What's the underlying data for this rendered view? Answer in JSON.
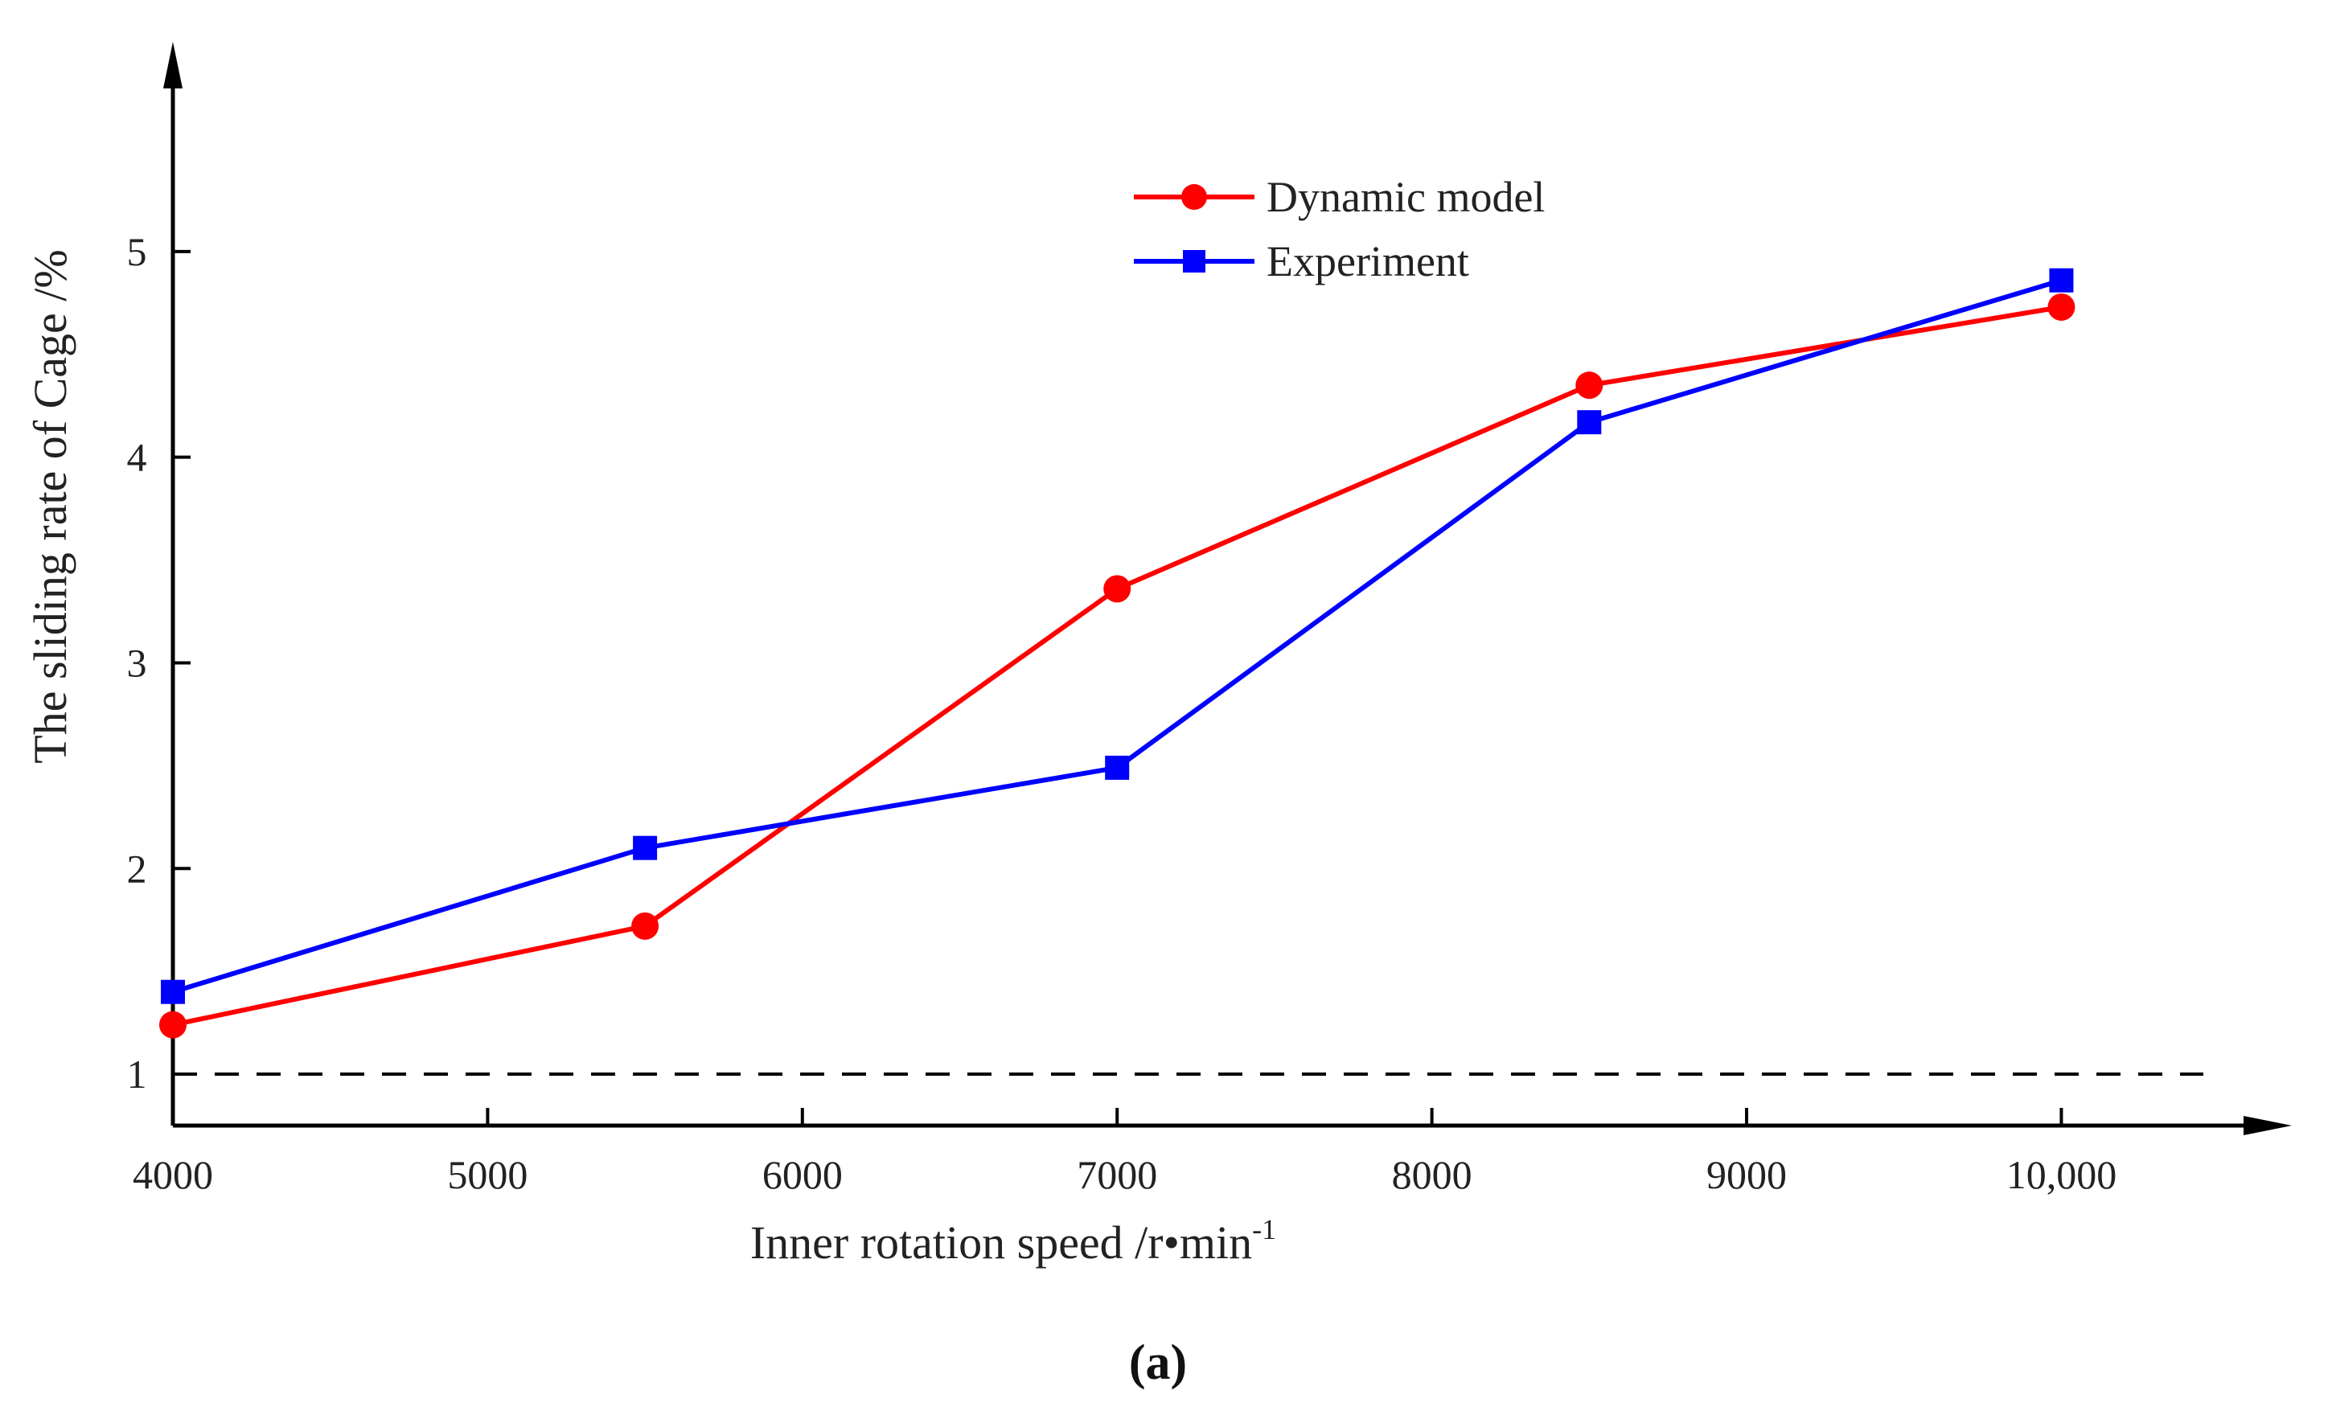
{
  "chart_data": {
    "type": "line",
    "x": [
      4000,
      5500,
      7000,
      8500,
      10000
    ],
    "series": [
      {
        "name": "Dynamic model",
        "values": [
          1.24,
          1.72,
          3.36,
          4.35,
          4.73
        ],
        "color": "#ff0000",
        "marker": "circle"
      },
      {
        "name": "Experiment",
        "values": [
          1.4,
          2.1,
          2.49,
          4.17,
          4.86
        ],
        "color": "#0000ff",
        "marker": "square"
      }
    ],
    "xlabel": "Inner rotation speed /r•min",
    "xlabel_superscript": "-1",
    "ylabel": "The sliding rate of Cage /%",
    "xlim": [
      4000,
      10400
    ],
    "ylim": [
      0.75,
      5.5
    ],
    "xticks": [
      4000,
      5000,
      6000,
      7000,
      8000,
      9000,
      10000
    ],
    "xtick_labels": [
      "4000",
      "5000",
      "6000",
      "7000",
      "8000",
      "9000",
      "10,000"
    ],
    "yticks": [
      1,
      2,
      3,
      4,
      5
    ],
    "ytick_labels": [
      "1",
      "2",
      "3",
      "4",
      "5"
    ],
    "reference_line": {
      "y": 1,
      "style": "dashed",
      "color": "#000000"
    },
    "legend_position": "top-right",
    "grid": false
  },
  "caption": "(a)"
}
